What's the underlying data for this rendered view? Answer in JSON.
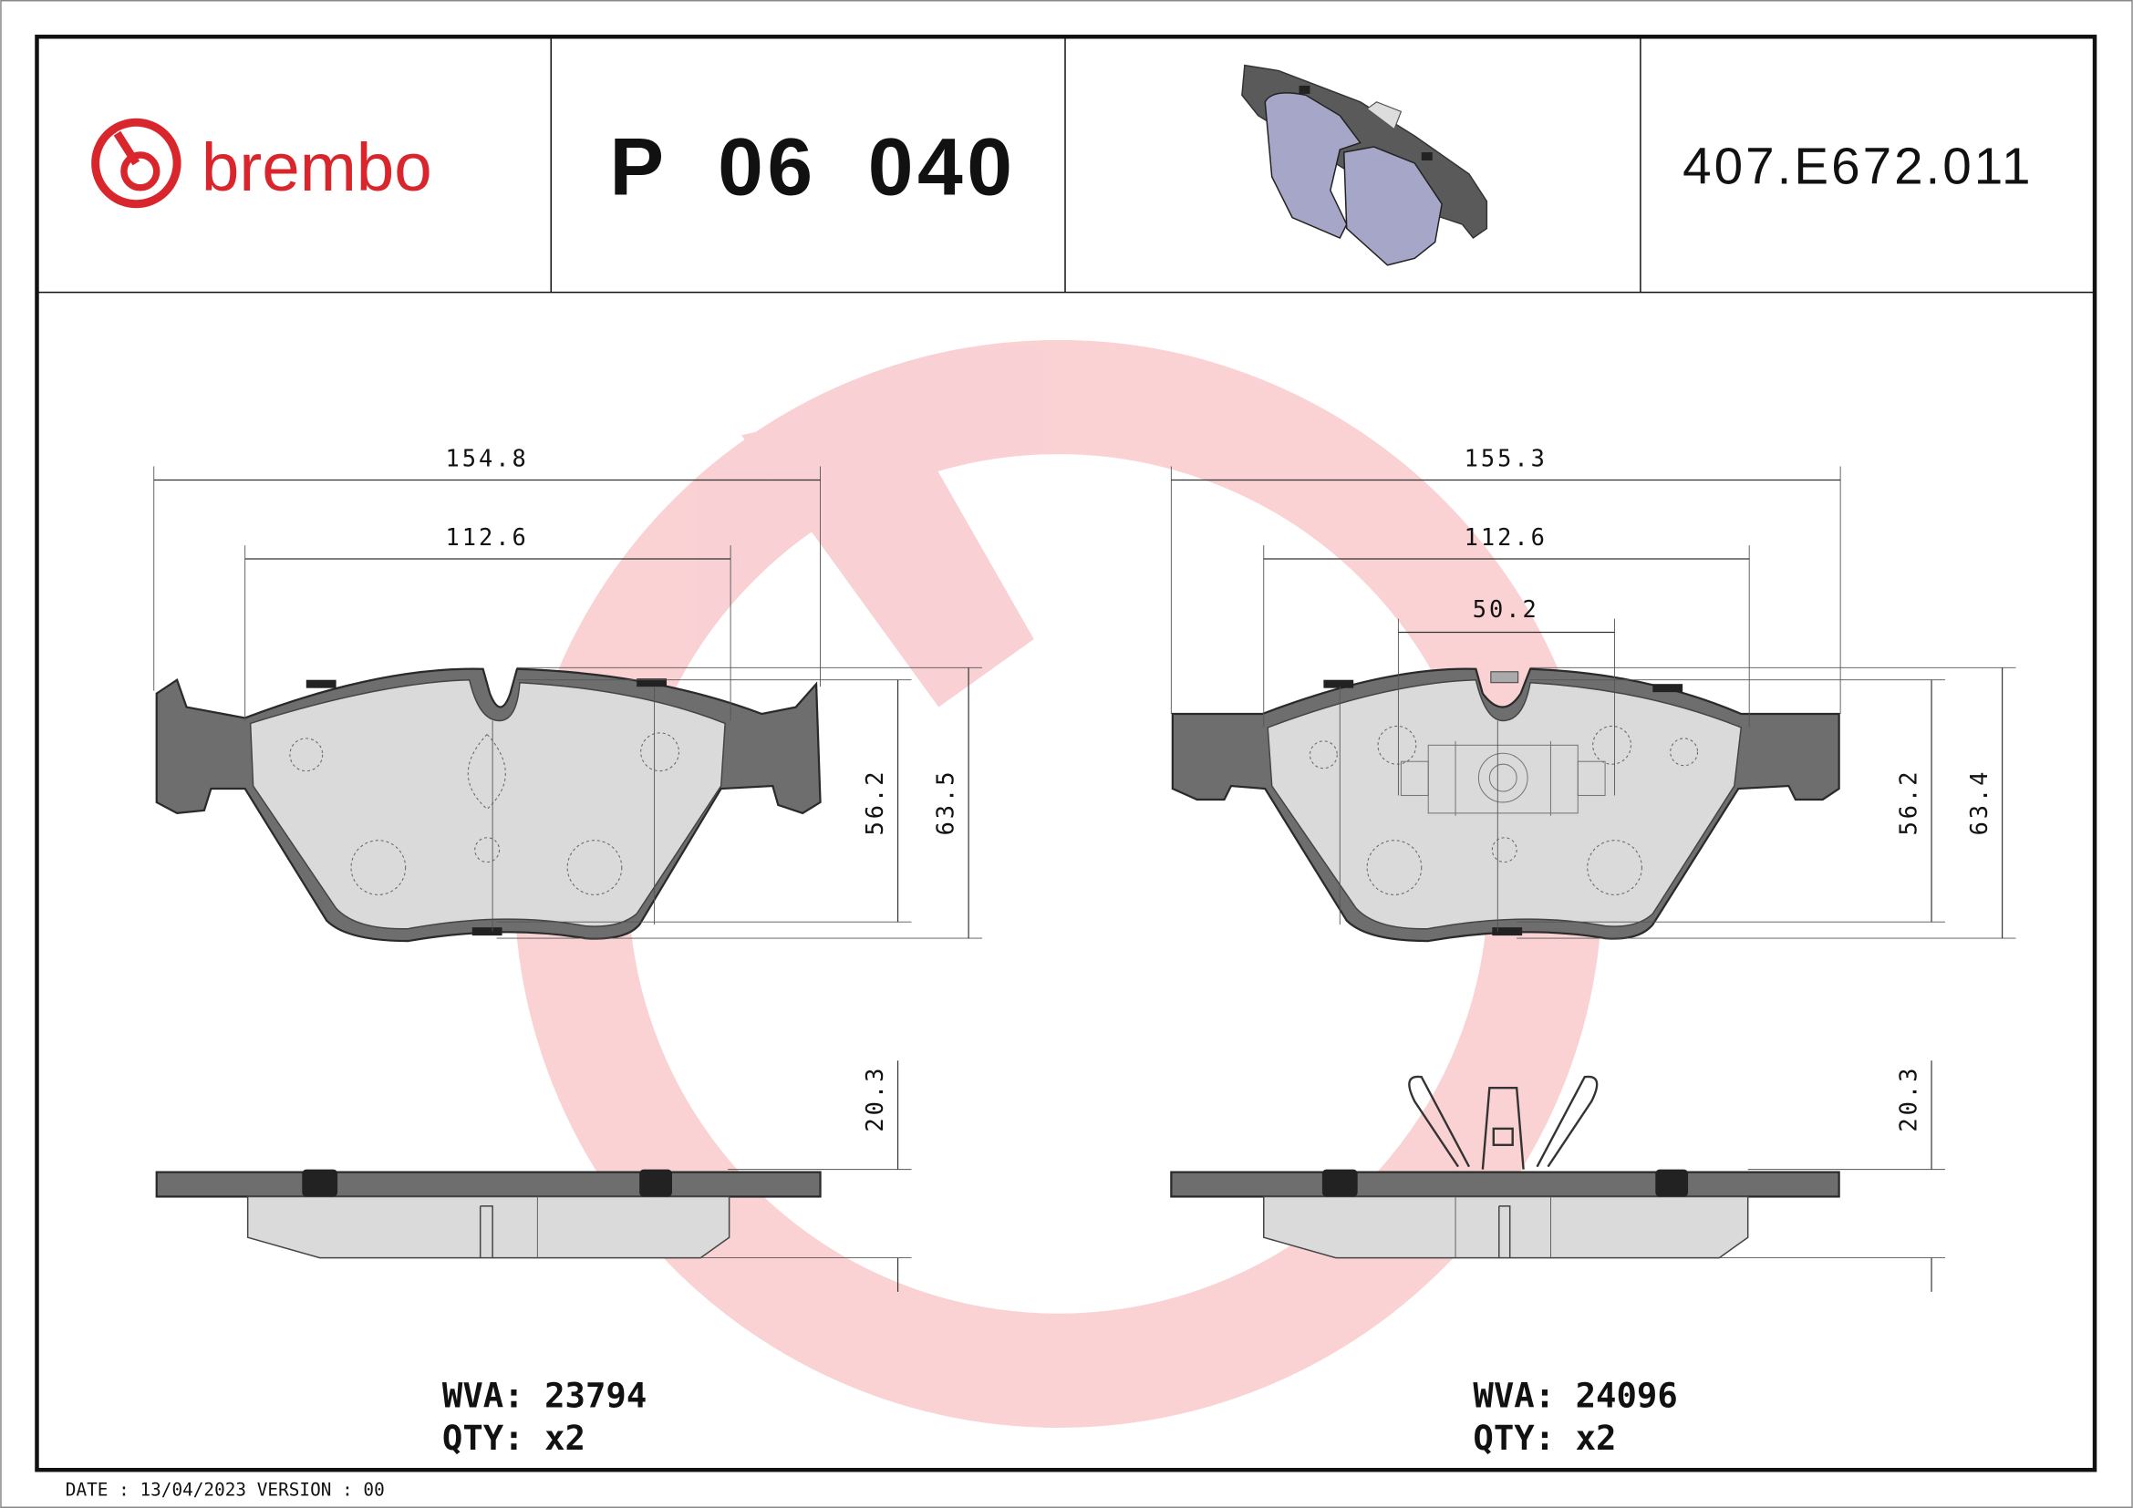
{
  "header": {
    "brand": "brembo",
    "part_number": "P 06 040",
    "reference_code": "407.E672.011",
    "brand_color": "#d9262c"
  },
  "drawings": {
    "left": {
      "width_overall": "154.8",
      "width_friction": "112.6",
      "height_friction": "56.2",
      "height_overall": "63.5",
      "thickness": "20.3",
      "wva_label": "WVA: 23794",
      "qty_label": "QTY: x2"
    },
    "right": {
      "width_overall": "155.3",
      "width_friction": "112.6",
      "sensor_width": "50.2",
      "height_friction": "56.2",
      "height_overall": "63.4",
      "thickness": "20.3",
      "wva_label": "WVA: 24096",
      "qty_label": "QTY: x2"
    }
  },
  "footer": {
    "date_version": "DATE : 13/04/2023 VERSION : 00"
  },
  "icons": {
    "logo": "brembo-logo",
    "watermark": "brembo-logo-watermark",
    "product": "brake-pad-3d-render"
  }
}
